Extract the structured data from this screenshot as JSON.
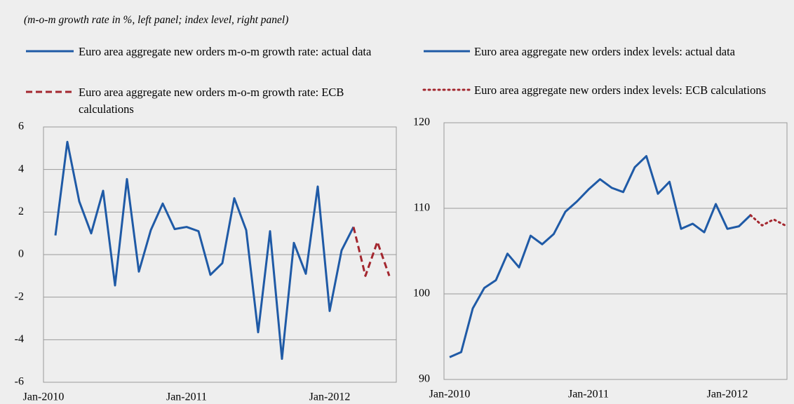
{
  "subtitle": "(m-o-m growth rate in %, left panel; index level, right panel)",
  "chart_data": [
    {
      "type": "line",
      "categories": [
        "Jan-2010",
        null,
        null,
        null,
        null,
        null,
        null,
        null,
        null,
        null,
        null,
        null,
        "Jan-2011",
        null,
        null,
        null,
        null,
        null,
        null,
        null,
        null,
        null,
        null,
        null,
        "Jan-2012",
        null,
        null,
        null,
        null,
        null
      ],
      "series": [
        {
          "name": "Euro area aggregate new orders m-o-m growth rate: actual data",
          "color": "#1f5aa6",
          "dash": "solid",
          "values": [
            null,
            0.9,
            5.3,
            2.5,
            1.0,
            3.0,
            -1.45,
            3.55,
            -0.8,
            1.15,
            2.4,
            1.2,
            1.3,
            1.1,
            -0.95,
            -0.4,
            2.65,
            1.15,
            -3.65,
            1.1,
            -4.9,
            0.55,
            -0.9,
            3.2,
            -2.65,
            0.2,
            1.3,
            null,
            null,
            null
          ]
        },
        {
          "name": "Euro area aggregate new orders m-o-m growth rate: ECB calculations",
          "color": "#a3262e",
          "dash": "dashed",
          "values": [
            null,
            null,
            null,
            null,
            null,
            null,
            null,
            null,
            null,
            null,
            null,
            null,
            null,
            null,
            null,
            null,
            null,
            null,
            null,
            null,
            null,
            null,
            null,
            null,
            null,
            null,
            1.3,
            -1.0,
            0.6,
            -1.0
          ]
        }
      ],
      "ylim": [
        -6,
        6
      ],
      "yticks": [
        -6,
        -4,
        -2,
        0,
        2,
        4,
        6
      ],
      "grid": true
    },
    {
      "type": "line",
      "categories": [
        "Jan-2010",
        null,
        null,
        null,
        null,
        null,
        null,
        null,
        null,
        null,
        null,
        null,
        "Jan-2011",
        null,
        null,
        null,
        null,
        null,
        null,
        null,
        null,
        null,
        null,
        null,
        "Jan-2012",
        null,
        null,
        null,
        null,
        null
      ],
      "series": [
        {
          "name": "Euro area aggregate new orders index levels: actual data",
          "color": "#1f5aa6",
          "dash": "solid",
          "values": [
            92.6,
            93.2,
            98.3,
            100.7,
            101.6,
            104.7,
            103.1,
            106.8,
            105.8,
            107.0,
            109.6,
            110.8,
            112.2,
            113.4,
            112.4,
            111.9,
            114.8,
            116.1,
            111.7,
            113.1,
            107.6,
            108.2,
            107.2,
            110.5,
            107.6,
            107.9,
            109.2,
            null,
            null,
            null
          ]
        },
        {
          "name": "Euro area aggregate new orders index levels: ECB calculations",
          "color": "#a3262e",
          "dash": "dotted",
          "values": [
            null,
            null,
            null,
            null,
            null,
            null,
            null,
            null,
            null,
            null,
            null,
            null,
            null,
            null,
            null,
            null,
            null,
            null,
            null,
            null,
            null,
            null,
            null,
            null,
            null,
            null,
            109.2,
            108.0,
            108.7,
            108.0
          ]
        }
      ],
      "ylim": [
        90,
        120
      ],
      "yticks": [
        90,
        100,
        110,
        120
      ],
      "grid": true
    }
  ]
}
